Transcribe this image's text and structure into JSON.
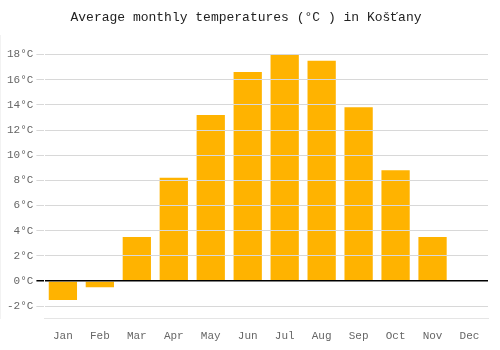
{
  "chart_data": {
    "type": "bar",
    "title": "Average monthly temperatures (°C ) in Košťany",
    "categories": [
      "Jan",
      "Feb",
      "Mar",
      "Apr",
      "May",
      "Jun",
      "Jul",
      "Aug",
      "Sep",
      "Oct",
      "Nov",
      "Dec"
    ],
    "values": [
      -1.5,
      -0.5,
      3.5,
      8.2,
      13.2,
      16.6,
      18.0,
      17.5,
      13.8,
      8.8,
      3.5,
      0.0
    ],
    "color": "#FFB300",
    "ylim": [
      -3,
      19.5
    ],
    "yticks": [
      {
        "value": -2,
        "label": "-2°C"
      },
      {
        "value": 0,
        "label": "0°C"
      },
      {
        "value": 2,
        "label": "2°C"
      },
      {
        "value": 4,
        "label": "4°C"
      },
      {
        "value": 6,
        "label": "6°C"
      },
      {
        "value": 8,
        "label": "8°C"
      },
      {
        "value": 10,
        "label": "10°C"
      },
      {
        "value": 12,
        "label": "12°C"
      },
      {
        "value": 14,
        "label": "14°C"
      },
      {
        "value": 16,
        "label": "16°C"
      },
      {
        "value": 18,
        "label": "18°C"
      }
    ],
    "grid": true
  }
}
